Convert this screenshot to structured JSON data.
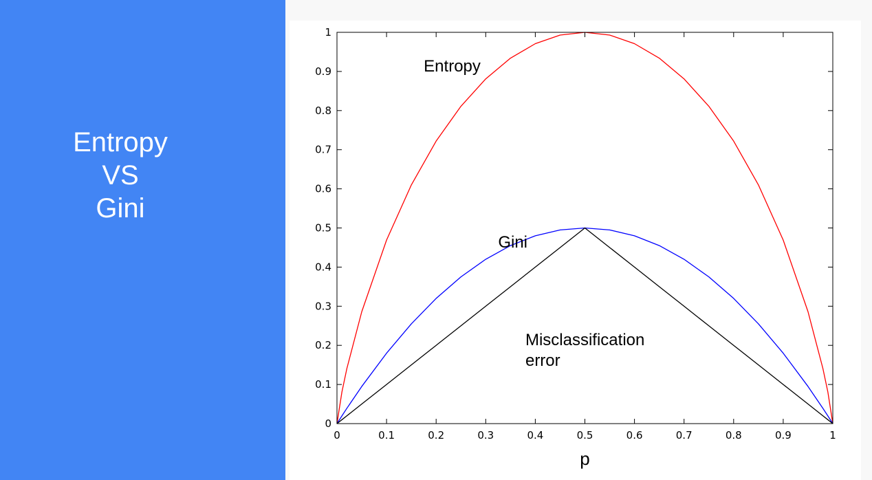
{
  "slide": {
    "title_lines": [
      "Entropy",
      "VS",
      "Gini"
    ]
  },
  "chart_data": {
    "type": "line",
    "title": "",
    "xlabel": "p",
    "ylabel": "",
    "xlim": [
      0,
      1
    ],
    "ylim": [
      0,
      1
    ],
    "grid": false,
    "x_ticks": [
      "0",
      "0.1",
      "0.2",
      "0.3",
      "0.4",
      "0.5",
      "0.6",
      "0.7",
      "0.8",
      "0.9",
      "1"
    ],
    "y_ticks": [
      "0",
      "0.1",
      "0.2",
      "0.3",
      "0.4",
      "0.5",
      "0.6",
      "0.7",
      "0.8",
      "0.9",
      "1"
    ],
    "x": [
      0,
      0.01,
      0.02,
      0.05,
      0.1,
      0.15,
      0.2,
      0.25,
      0.3,
      0.35,
      0.4,
      0.45,
      0.5,
      0.55,
      0.6,
      0.65,
      0.7,
      0.75,
      0.8,
      0.85,
      0.9,
      0.95,
      0.98,
      0.99,
      1
    ],
    "series": [
      {
        "name": "Entropy",
        "color": "#ff0000",
        "values": [
          0,
          0.081,
          0.141,
          0.286,
          0.469,
          0.61,
          0.722,
          0.811,
          0.881,
          0.934,
          0.971,
          0.993,
          1,
          0.993,
          0.971,
          0.934,
          0.881,
          0.811,
          0.722,
          0.61,
          0.469,
          0.286,
          0.141,
          0.081,
          0
        ]
      },
      {
        "name": "Gini",
        "color": "#0000ff",
        "values": [
          0,
          0.0198,
          0.0392,
          0.095,
          0.18,
          0.255,
          0.32,
          0.375,
          0.42,
          0.455,
          0.48,
          0.495,
          0.5,
          0.495,
          0.48,
          0.455,
          0.42,
          0.375,
          0.32,
          0.255,
          0.18,
          0.095,
          0.0392,
          0.0198,
          0
        ]
      },
      {
        "name": "Misclassification error",
        "color": "#000000",
        "values": [
          0,
          0.01,
          0.02,
          0.05,
          0.1,
          0.15,
          0.2,
          0.25,
          0.3,
          0.35,
          0.4,
          0.45,
          0.5,
          0.45,
          0.4,
          0.35,
          0.3,
          0.25,
          0.2,
          0.15,
          0.1,
          0.05,
          0.02,
          0.01,
          0
        ]
      }
    ],
    "annotations": [
      {
        "lines": [
          "Entropy"
        ],
        "x": 0.175,
        "y": 0.9
      },
      {
        "lines": [
          "Gini"
        ],
        "x": 0.325,
        "y": 0.45
      },
      {
        "lines": [
          "Misclassification",
          "error"
        ],
        "x": 0.38,
        "y": 0.2
      }
    ]
  }
}
